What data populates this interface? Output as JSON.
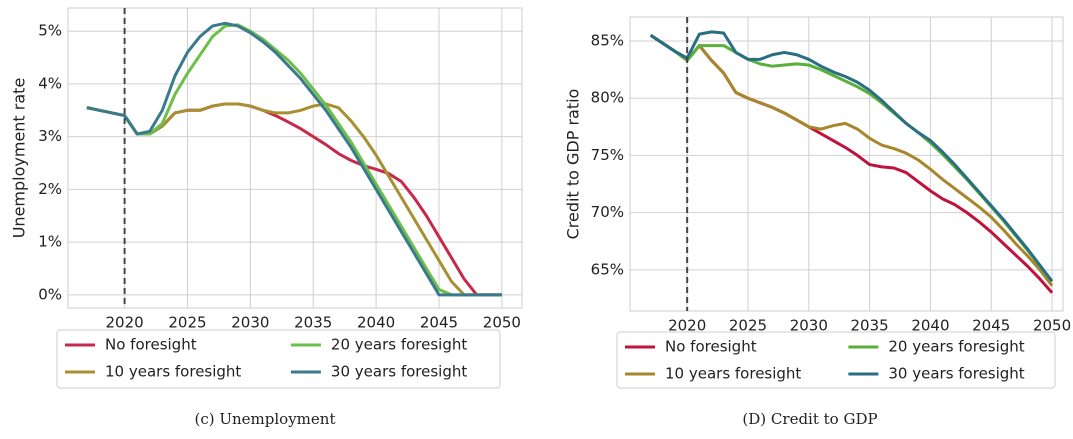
{
  "chart_data": [
    {
      "type": "line",
      "ylabel": "Unemployment rate",
      "caption": "(c) Unemployment",
      "x": [
        2017,
        2018,
        2019,
        2020,
        2021,
        2022,
        2023,
        2024,
        2025,
        2026,
        2027,
        2028,
        2029,
        2030,
        2031,
        2032,
        2033,
        2034,
        2035,
        2036,
        2037,
        2038,
        2039,
        2040,
        2041,
        2042,
        2043,
        2044,
        2045,
        2046,
        2047,
        2048,
        2049,
        2050
      ],
      "xlim": [
        2015.5,
        2051.6
      ],
      "xticks": [
        2020,
        2025,
        2030,
        2035,
        2040,
        2045,
        2050
      ],
      "ylim": [
        -0.25,
        5.44
      ],
      "yticks": [
        {
          "value": 0,
          "label": "0%"
        },
        {
          "value": 1,
          "label": "1%"
        },
        {
          "value": 2,
          "label": "2%"
        },
        {
          "value": 3,
          "label": "3%"
        },
        {
          "value": 4,
          "label": "4%"
        },
        {
          "value": 5,
          "label": "5%"
        }
      ],
      "vline": 2020,
      "grid": true,
      "series": [
        {
          "name": "No foresight",
          "color": "#c8284a",
          "values": [
            3.55,
            3.5,
            3.45,
            3.4,
            3.05,
            3.05,
            3.2,
            3.45,
            3.5,
            3.5,
            3.58,
            3.62,
            3.62,
            3.58,
            3.5,
            3.4,
            3.28,
            3.15,
            3.0,
            2.85,
            2.68,
            2.55,
            2.45,
            2.38,
            2.3,
            2.15,
            1.85,
            1.5,
            1.1,
            0.7,
            0.3,
            0,
            0,
            0
          ]
        },
        {
          "name": "10 years foresight",
          "color": "#a89030",
          "values": [
            3.55,
            3.5,
            3.45,
            3.4,
            3.05,
            3.05,
            3.2,
            3.45,
            3.5,
            3.5,
            3.58,
            3.62,
            3.62,
            3.58,
            3.5,
            3.45,
            3.45,
            3.5,
            3.58,
            3.62,
            3.55,
            3.3,
            3.0,
            2.65,
            2.25,
            1.85,
            1.45,
            1.05,
            0.65,
            0.25,
            0,
            0,
            0,
            0
          ]
        },
        {
          "name": "20 years foresight",
          "color": "#6cbf48",
          "values": [
            3.55,
            3.5,
            3.45,
            3.4,
            3.05,
            3.05,
            3.25,
            3.8,
            4.2,
            4.55,
            4.9,
            5.1,
            5.12,
            5.0,
            4.85,
            4.65,
            4.45,
            4.2,
            3.9,
            3.6,
            3.25,
            2.9,
            2.5,
            2.1,
            1.7,
            1.3,
            0.9,
            0.5,
            0.1,
            0,
            0,
            0,
            0,
            0
          ]
        },
        {
          "name": "30 years foresight",
          "color": "#3a7a8c",
          "values": [
            3.55,
            3.5,
            3.45,
            3.4,
            3.05,
            3.1,
            3.5,
            4.15,
            4.6,
            4.9,
            5.1,
            5.15,
            5.1,
            4.97,
            4.8,
            4.6,
            4.35,
            4.1,
            3.8,
            3.5,
            3.15,
            2.8,
            2.4,
            2.0,
            1.6,
            1.2,
            0.8,
            0.4,
            0,
            0,
            0,
            0,
            0,
            0
          ]
        }
      ]
    },
    {
      "type": "line",
      "ylabel": "Credit to GDP ratio",
      "caption": "(D) Credit to GDP",
      "x": [
        2017,
        2018,
        2019,
        2020,
        2021,
        2022,
        2023,
        2024,
        2025,
        2026,
        2027,
        2028,
        2029,
        2030,
        2031,
        2032,
        2033,
        2034,
        2035,
        2036,
        2037,
        2038,
        2039,
        2040,
        2041,
        2042,
        2043,
        2044,
        2045,
        2046,
        2047,
        2048,
        2049,
        2050
      ],
      "xlim": [
        2015.3,
        2050.9
      ],
      "xticks": [
        2020,
        2025,
        2030,
        2035,
        2040,
        2045,
        2050
      ],
      "ylim": [
        61.4,
        87.1
      ],
      "yticks": [
        {
          "value": 65,
          "label": "65%"
        },
        {
          "value": 70,
          "label": "70%"
        },
        {
          "value": 75,
          "label": "75%"
        },
        {
          "value": 80,
          "label": "80%"
        },
        {
          "value": 85,
          "label": "85%"
        }
      ],
      "vline": 2020,
      "grid": true,
      "series": [
        {
          "name": "No foresight",
          "color": "#c0123c",
          "values": [
            85.5,
            84.8,
            84.1,
            83.3,
            84.6,
            83.3,
            82.2,
            80.5,
            80,
            79.6,
            79.2,
            78.7,
            78.1,
            77.5,
            76.9,
            76.3,
            75.7,
            75,
            74.2,
            74,
            73.9,
            73.5,
            72.7,
            71.9,
            71.2,
            70.7,
            70,
            69.2,
            68.3,
            67.3,
            66.3,
            65.3,
            64.2,
            63.0
          ]
        },
        {
          "name": "10 years foresight",
          "color": "#a8862a",
          "values": [
            85.5,
            84.8,
            84.1,
            83.3,
            84.6,
            83.3,
            82.2,
            80.5,
            80,
            79.6,
            79.2,
            78.7,
            78.1,
            77.5,
            77.3,
            77.6,
            77.8,
            77.3,
            76.5,
            75.9,
            75.6,
            75.2,
            74.6,
            73.8,
            72.9,
            72.1,
            71.3,
            70.5,
            69.6,
            68.5,
            67.3,
            66.2,
            65,
            63.6
          ]
        },
        {
          "name": "20 years foresight",
          "color": "#58b038",
          "values": [
            85.5,
            84.8,
            84.1,
            83.3,
            84.6,
            84.6,
            84.6,
            84.0,
            83.4,
            83,
            82.8,
            82.9,
            83,
            82.9,
            82.5,
            82,
            81.5,
            81,
            80.4,
            79.6,
            78.7,
            77.8,
            77,
            76.1,
            75.1,
            74,
            72.9,
            71.7,
            70.5,
            69.3,
            68,
            66.7,
            65.3,
            64
          ]
        },
        {
          "name": "30 years foresight",
          "color": "#2a6e84",
          "values": [
            85.5,
            84.8,
            84.1,
            83.5,
            85.6,
            85.8,
            85.7,
            84,
            83.4,
            83.4,
            83.8,
            84,
            83.8,
            83.4,
            82.8,
            82.3,
            81.9,
            81.4,
            80.7,
            79.8,
            78.8,
            77.8,
            77,
            76.3,
            75.3,
            74.2,
            73,
            71.8,
            70.6,
            69.4,
            68.1,
            66.8,
            65.4,
            64
          ]
        }
      ]
    }
  ]
}
